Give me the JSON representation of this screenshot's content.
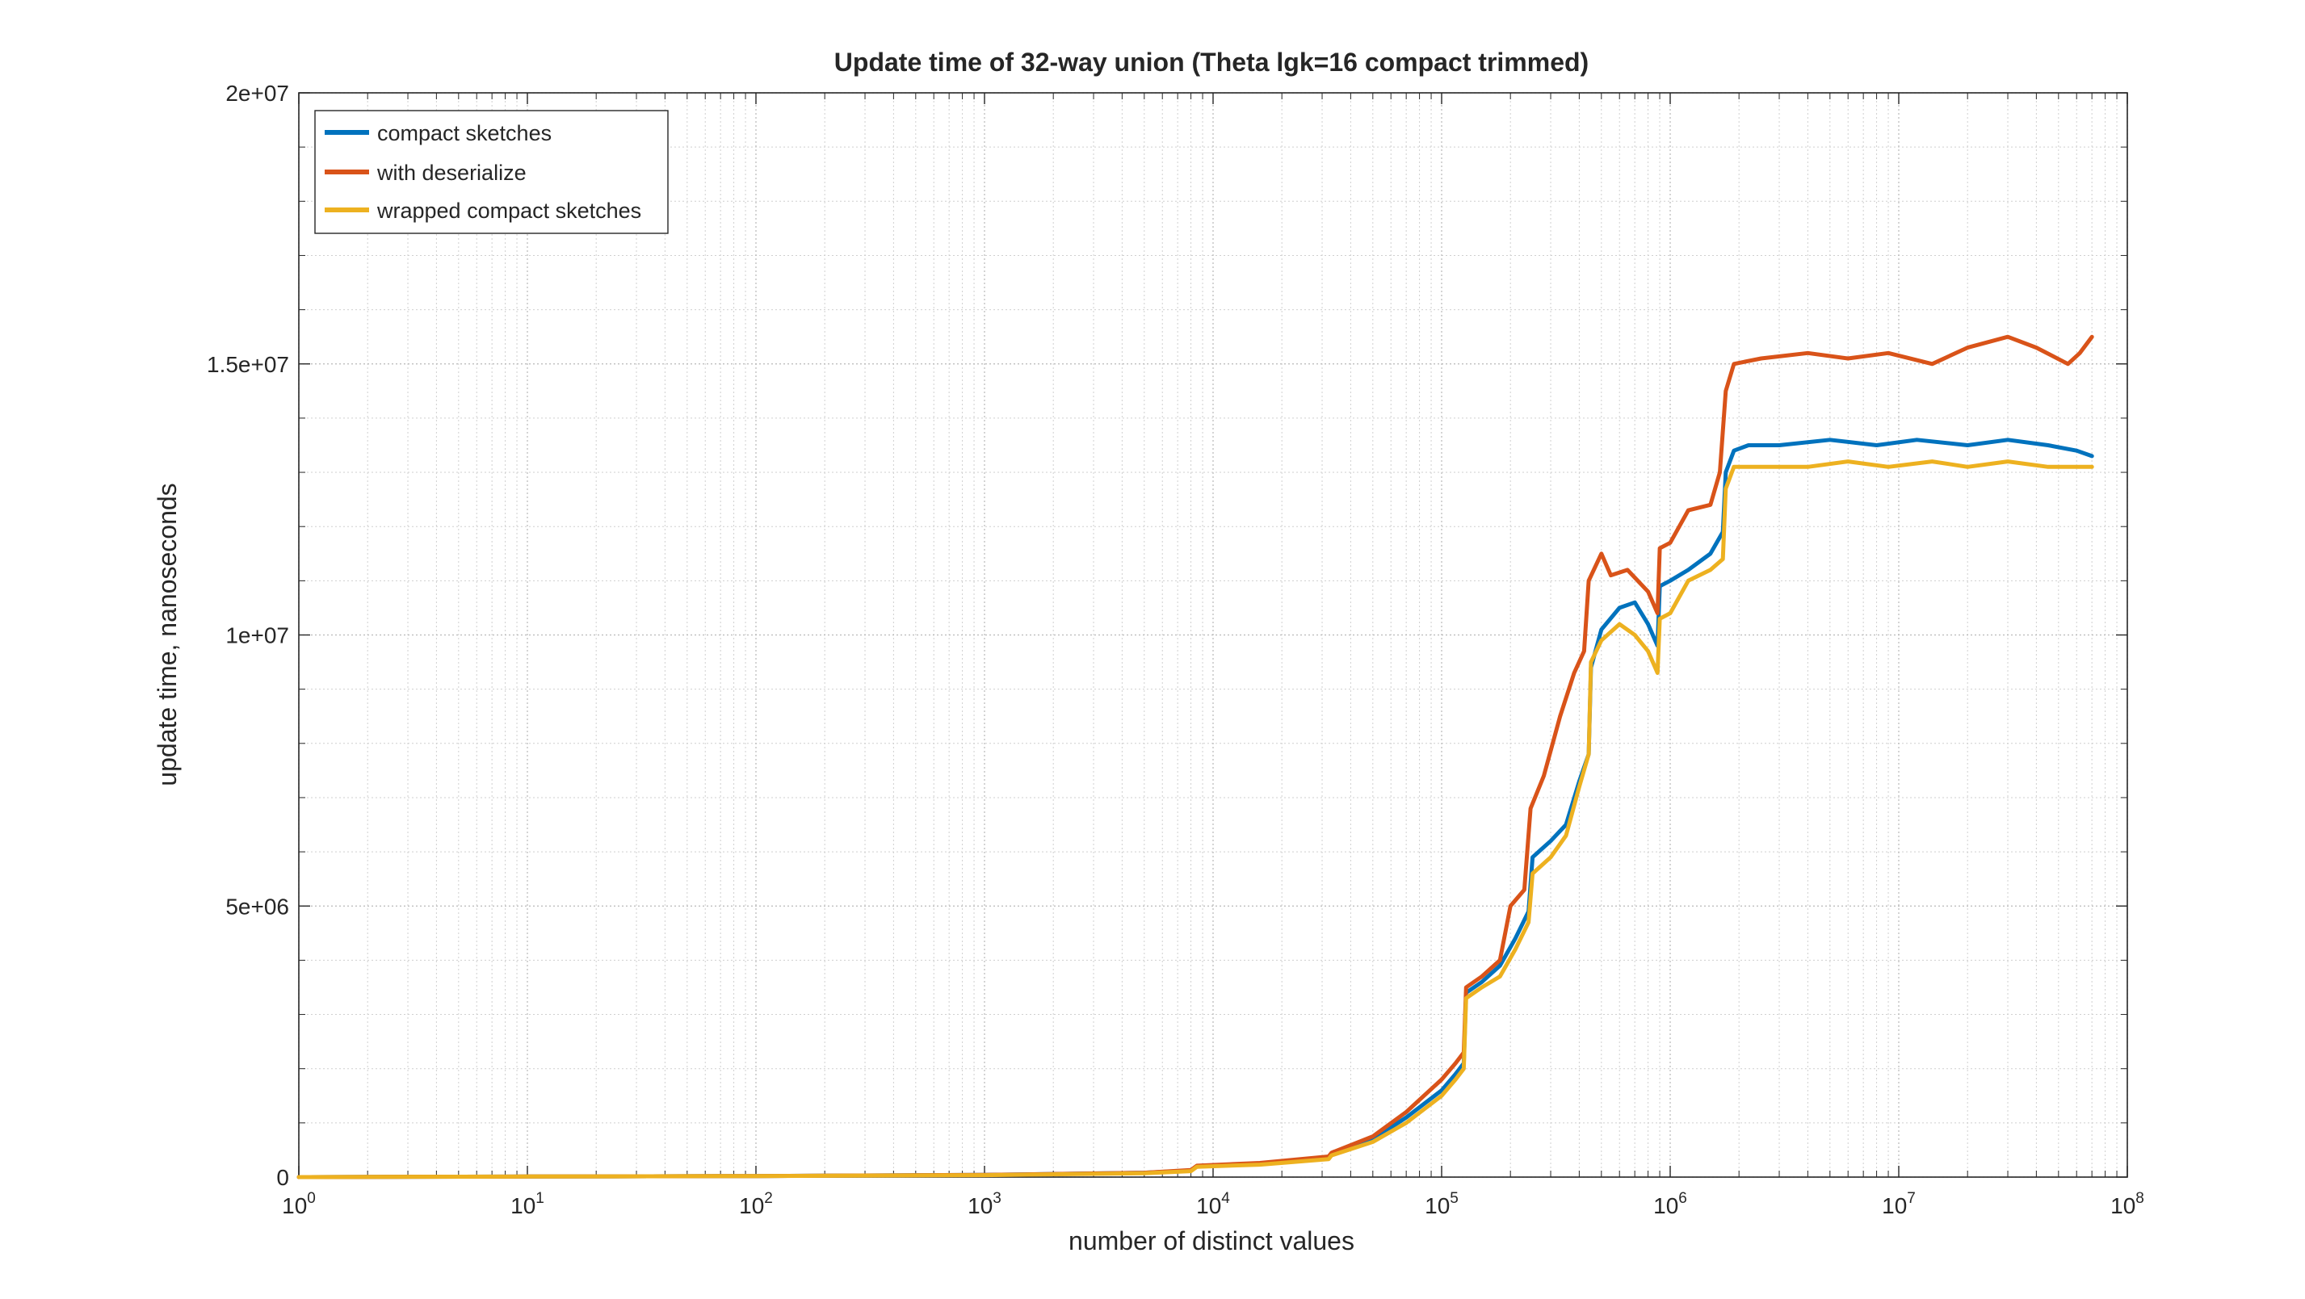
{
  "chart_data": {
    "type": "line",
    "title": "Update time of 32-way union (Theta lgk=16 compact trimmed)",
    "xlabel": "number of distinct values",
    "ylabel": "update time, nanoseconds",
    "xscale": "log",
    "xlim": [
      1,
      100000000
    ],
    "ylim": [
      0,
      20000000
    ],
    "grid": true,
    "minor_grid": true,
    "legend_position": "top-left",
    "x_ticks": [
      {
        "base": "10",
        "exp": "0"
      },
      {
        "base": "10",
        "exp": "1"
      },
      {
        "base": "10",
        "exp": "2"
      },
      {
        "base": "10",
        "exp": "3"
      },
      {
        "base": "10",
        "exp": "4"
      },
      {
        "base": "10",
        "exp": "5"
      },
      {
        "base": "10",
        "exp": "6"
      },
      {
        "base": "10",
        "exp": "7"
      },
      {
        "base": "10",
        "exp": "8"
      }
    ],
    "y_ticks": [
      {
        "value": 0,
        "label": "0"
      },
      {
        "value": 5000000,
        "label": "5e+06"
      },
      {
        "value": 10000000,
        "label": "1e+07"
      },
      {
        "value": 15000000,
        "label": "1.5e+07"
      },
      {
        "value": 20000000,
        "label": "2e+07"
      }
    ],
    "series": [
      {
        "name": "compact sketches",
        "color": "#0072BD",
        "points": [
          [
            1,
            0
          ],
          [
            10,
            10000
          ],
          [
            100,
            20000
          ],
          [
            1000,
            40000
          ],
          [
            5000,
            80000
          ],
          [
            8000,
            120000
          ],
          [
            8500,
            200000
          ],
          [
            16000,
            250000
          ],
          [
            32000,
            350000
          ],
          [
            33000,
            420000
          ],
          [
            50000,
            700000
          ],
          [
            70000,
            1100000
          ],
          [
            100000,
            1600000
          ],
          [
            115000,
            1900000
          ],
          [
            125000,
            2100000
          ],
          [
            128000,
            3400000
          ],
          [
            150000,
            3600000
          ],
          [
            180000,
            3900000
          ],
          [
            210000,
            4400000
          ],
          [
            240000,
            4900000
          ],
          [
            250000,
            5900000
          ],
          [
            300000,
            6200000
          ],
          [
            350000,
            6500000
          ],
          [
            400000,
            7300000
          ],
          [
            440000,
            7800000
          ],
          [
            450000,
            9400000
          ],
          [
            500000,
            10100000
          ],
          [
            600000,
            10500000
          ],
          [
            700000,
            10600000
          ],
          [
            800000,
            10200000
          ],
          [
            880000,
            9800000
          ],
          [
            900000,
            10900000
          ],
          [
            1000000,
            11000000
          ],
          [
            1200000,
            11200000
          ],
          [
            1500000,
            11500000
          ],
          [
            1700000,
            11900000
          ],
          [
            1750000,
            13000000
          ],
          [
            1900000,
            13400000
          ],
          [
            2200000,
            13500000
          ],
          [
            3000000,
            13500000
          ],
          [
            5000000,
            13600000
          ],
          [
            8000000,
            13500000
          ],
          [
            12000000,
            13600000
          ],
          [
            20000000,
            13500000
          ],
          [
            30000000,
            13600000
          ],
          [
            45000000,
            13500000
          ],
          [
            60000000,
            13400000
          ],
          [
            70000000,
            13300000
          ]
        ]
      },
      {
        "name": "with deserialize",
        "color": "#D95319",
        "points": [
          [
            1,
            0
          ],
          [
            10,
            10000
          ],
          [
            100,
            20000
          ],
          [
            1000,
            40000
          ],
          [
            5000,
            80000
          ],
          [
            8000,
            130000
          ],
          [
            8500,
            210000
          ],
          [
            16000,
            260000
          ],
          [
            32000,
            380000
          ],
          [
            33000,
            450000
          ],
          [
            50000,
            750000
          ],
          [
            70000,
            1200000
          ],
          [
            100000,
            1800000
          ],
          [
            115000,
            2100000
          ],
          [
            125000,
            2300000
          ],
          [
            128000,
            3500000
          ],
          [
            150000,
            3700000
          ],
          [
            180000,
            4000000
          ],
          [
            200000,
            5000000
          ],
          [
            230000,
            5300000
          ],
          [
            245000,
            6800000
          ],
          [
            280000,
            7400000
          ],
          [
            330000,
            8500000
          ],
          [
            380000,
            9300000
          ],
          [
            420000,
            9700000
          ],
          [
            440000,
            11000000
          ],
          [
            500000,
            11500000
          ],
          [
            550000,
            11100000
          ],
          [
            650000,
            11200000
          ],
          [
            800000,
            10800000
          ],
          [
            880000,
            10400000
          ],
          [
            900000,
            11600000
          ],
          [
            1000000,
            11700000
          ],
          [
            1200000,
            12300000
          ],
          [
            1500000,
            12400000
          ],
          [
            1650000,
            13000000
          ],
          [
            1750000,
            14500000
          ],
          [
            1900000,
            15000000
          ],
          [
            2500000,
            15100000
          ],
          [
            4000000,
            15200000
          ],
          [
            6000000,
            15100000
          ],
          [
            9000000,
            15200000
          ],
          [
            14000000,
            15000000
          ],
          [
            20000000,
            15300000
          ],
          [
            30000000,
            15500000
          ],
          [
            40000000,
            15300000
          ],
          [
            55000000,
            15000000
          ],
          [
            62000000,
            15200000
          ],
          [
            70000000,
            15500000
          ]
        ]
      },
      {
        "name": "wrapped compact sketches",
        "color": "#EDB120",
        "points": [
          [
            1,
            0
          ],
          [
            10,
            10000
          ],
          [
            100,
            20000
          ],
          [
            1000,
            35000
          ],
          [
            5000,
            70000
          ],
          [
            8000,
            110000
          ],
          [
            8500,
            190000
          ],
          [
            16000,
            230000
          ],
          [
            32000,
            330000
          ],
          [
            33000,
            400000
          ],
          [
            50000,
            650000
          ],
          [
            70000,
            1000000
          ],
          [
            100000,
            1500000
          ],
          [
            115000,
            1800000
          ],
          [
            125000,
            2000000
          ],
          [
            128000,
            3300000
          ],
          [
            150000,
            3500000
          ],
          [
            180000,
            3700000
          ],
          [
            210000,
            4200000
          ],
          [
            240000,
            4700000
          ],
          [
            250000,
            5600000
          ],
          [
            300000,
            5900000
          ],
          [
            350000,
            6300000
          ],
          [
            400000,
            7200000
          ],
          [
            440000,
            7800000
          ],
          [
            450000,
            9500000
          ],
          [
            500000,
            9900000
          ],
          [
            600000,
            10200000
          ],
          [
            700000,
            10000000
          ],
          [
            800000,
            9700000
          ],
          [
            880000,
            9300000
          ],
          [
            900000,
            10300000
          ],
          [
            1000000,
            10400000
          ],
          [
            1200000,
            11000000
          ],
          [
            1500000,
            11200000
          ],
          [
            1700000,
            11400000
          ],
          [
            1750000,
            12700000
          ],
          [
            1900000,
            13100000
          ],
          [
            2500000,
            13100000
          ],
          [
            4000000,
            13100000
          ],
          [
            6000000,
            13200000
          ],
          [
            9000000,
            13100000
          ],
          [
            14000000,
            13200000
          ],
          [
            20000000,
            13100000
          ],
          [
            30000000,
            13200000
          ],
          [
            45000000,
            13100000
          ],
          [
            60000000,
            13100000
          ],
          [
            70000000,
            13100000
          ]
        ]
      }
    ]
  }
}
